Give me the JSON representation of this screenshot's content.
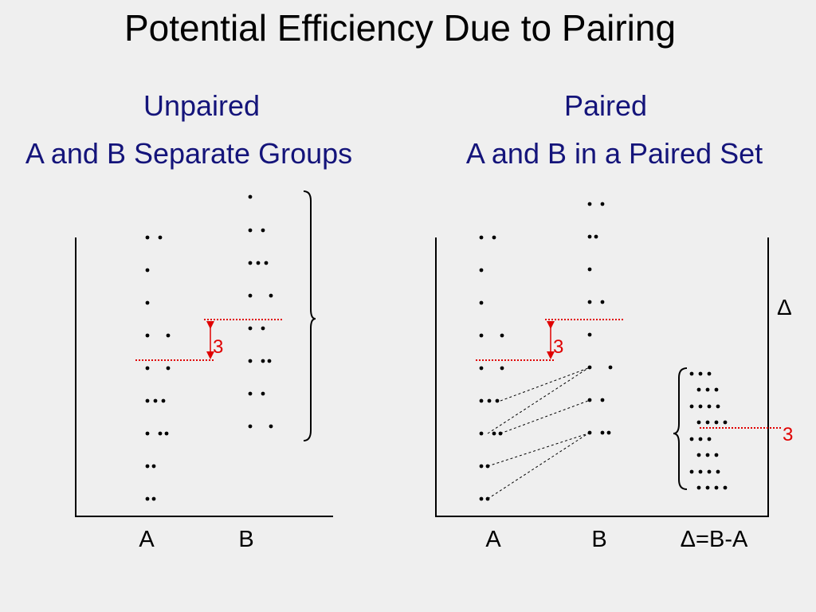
{
  "title": "Potential Efficiency Due to Pairing",
  "left_panel": {
    "heading": "Unpaired",
    "subheading": "A and B Separate Groups",
    "x_labels": [
      "A",
      "B"
    ],
    "difference_label": "3"
  },
  "right_panel": {
    "heading": "Paired",
    "subheading": "A and B in a Paired Set",
    "x_labels": [
      "A",
      "B",
      "Δ=B-A"
    ],
    "difference_label": "3",
    "delta_axis_label": "Δ",
    "delta_mean_label": "3"
  },
  "colors": {
    "text": "#000000",
    "heading": "#14147a",
    "mean_line": "#e00000",
    "background": "#efefef"
  }
}
